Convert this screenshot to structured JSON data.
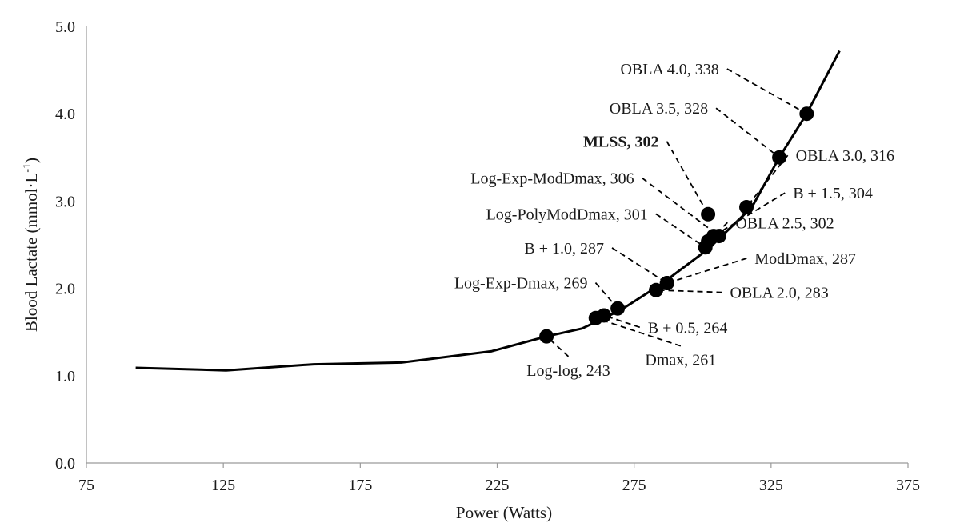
{
  "chart_data": {
    "type": "line",
    "title": "",
    "xlabel": "Power (Watts)",
    "ylabel": "Blood Lactate (mmol·L",
    "ylabel_superscript": "-1",
    "ylabel_suffix": ")",
    "xlim": [
      75,
      375
    ],
    "ylim": [
      0,
      5
    ],
    "x_ticks": [
      75,
      125,
      175,
      225,
      275,
      325,
      375
    ],
    "x_tick_labels": [
      "75",
      "125",
      "175",
      "225",
      "275",
      "325",
      "375"
    ],
    "y_ticks": [
      0,
      1,
      2,
      3,
      4,
      5
    ],
    "y_tick_labels": [
      "0.0",
      "1.0",
      "2.0",
      "3.0",
      "4.0",
      "5.0"
    ],
    "grid": false,
    "legend": "none",
    "series": [
      {
        "x": [
          93,
          126,
          158,
          190,
          223,
          243,
          256,
          270,
          285,
          302,
          318,
          328,
          338,
          350
        ],
        "y": [
          1.09,
          1.06,
          1.13,
          1.15,
          1.28,
          1.45,
          1.54,
          1.75,
          2.05,
          2.45,
          2.93,
          3.5,
          4.0,
          4.72
        ]
      }
    ],
    "threshold_points": [
      {
        "label": "Log-log, 243",
        "x": 243,
        "y": 1.45,
        "bold": false,
        "label_x": 251,
        "label_y": 1.0,
        "anchor": "middle"
      },
      {
        "label": "Dmax, 261",
        "x": 261,
        "y": 1.66,
        "bold": false,
        "label_x": 292,
        "label_y": 1.12,
        "anchor": "middle"
      },
      {
        "label": "B + 0.5, 264",
        "x": 264,
        "y": 1.69,
        "bold": false,
        "label_x": 280,
        "label_y": 1.49,
        "anchor": "start"
      },
      {
        "label": "Log-Exp-Dmax, 269",
        "x": 269,
        "y": 1.77,
        "bold": false,
        "label_x": 258,
        "label_y": 2.0,
        "anchor": "end"
      },
      {
        "label": "OBLA 2.0, 283",
        "x": 283,
        "y": 1.98,
        "bold": false,
        "label_x": 310,
        "label_y": 1.89,
        "anchor": "start"
      },
      {
        "label": "B + 1.0, 287",
        "x": 287,
        "y": 2.06,
        "bold": false,
        "label_x": 264,
        "label_y": 2.4,
        "anchor": "end"
      },
      {
        "label": "ModDmax, 287",
        "x": 287,
        "y": 2.06,
        "bold": false,
        "label_x": 319,
        "label_y": 2.28,
        "anchor": "start"
      },
      {
        "label": "Log-PolyModDmax, 301",
        "x": 301,
        "y": 2.47,
        "bold": false,
        "label_x": 280,
        "label_y": 2.79,
        "anchor": "end"
      },
      {
        "label": "OBLA 2.5, 302",
        "x": 302,
        "y": 2.54,
        "bold": false,
        "label_x": 312,
        "label_y": 2.69,
        "anchor": "start"
      },
      {
        "label": "Log-Exp-ModDmax, 306",
        "x": 306,
        "y": 2.6,
        "bold": false,
        "label_x": 275,
        "label_y": 3.2,
        "anchor": "end"
      },
      {
        "label": "B + 1.5, 304",
        "x": 304,
        "y": 2.6,
        "bold": false,
        "label_x": 333,
        "label_y": 3.03,
        "anchor": "start"
      },
      {
        "label": "MLSS, 302",
        "x": 302,
        "y": 2.85,
        "bold": true,
        "label_x": 284,
        "label_y": 3.62,
        "anchor": "end"
      },
      {
        "label": "OBLA 3.0, 316",
        "x": 316,
        "y": 2.93,
        "bold": false,
        "label_x": 334,
        "label_y": 3.46,
        "anchor": "start"
      },
      {
        "label": "OBLA 3.5, 328",
        "x": 328,
        "y": 3.5,
        "bold": false,
        "label_x": 302,
        "label_y": 4.0,
        "anchor": "end"
      },
      {
        "label": "OBLA 4.0, 338",
        "x": 338,
        "y": 4.0,
        "bold": false,
        "label_x": 306,
        "label_y": 4.45,
        "anchor": "end"
      }
    ]
  }
}
